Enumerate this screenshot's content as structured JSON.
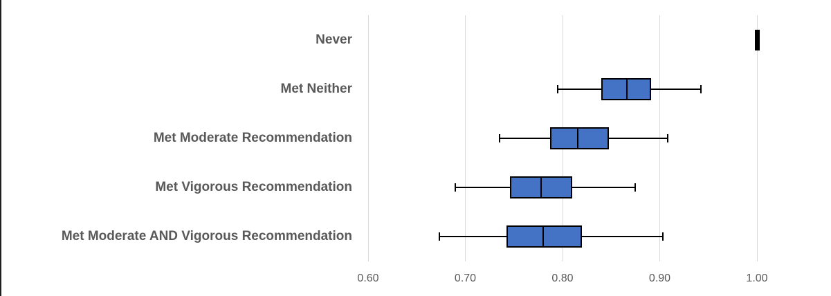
{
  "chart_data": {
    "type": "boxplot",
    "orientation": "horizontal",
    "title": "",
    "categories": [
      "Never",
      "Met Neither",
      "Met Moderate Recommendation",
      "Met Vigorous Recommendation",
      "Met Moderate AND Vigorous Recommendation"
    ],
    "series": [
      {
        "name": "Never",
        "min": 1.0,
        "q1": 1.0,
        "median": 1.0,
        "q3": 1.0,
        "max": 1.0
      },
      {
        "name": "Met Neither",
        "min": 0.795,
        "q1": 0.84,
        "median": 0.866,
        "q3": 0.891,
        "max": 0.942
      },
      {
        "name": "Met Moderate Recommendation",
        "min": 0.735,
        "q1": 0.787,
        "median": 0.816,
        "q3": 0.848,
        "max": 0.908
      },
      {
        "name": "Met Vigorous Recommendation",
        "min": 0.69,
        "q1": 0.746,
        "median": 0.778,
        "q3": 0.81,
        "max": 0.875
      },
      {
        "name": "Met Moderate AND Vigorous Recommendation",
        "min": 0.673,
        "q1": 0.742,
        "median": 0.78,
        "q3": 0.82,
        "max": 0.903
      }
    ],
    "x_axis": {
      "min": 0.6,
      "max": 1.0,
      "tick_labels": [
        "0.60",
        "0.70",
        "0.80",
        "0.90",
        "1.00"
      ],
      "tick_values": [
        0.6,
        0.7,
        0.8,
        0.9,
        1.0
      ]
    },
    "grid": true,
    "legend": null,
    "xlabel": "",
    "ylabel": "",
    "colors": {
      "box_fill": "#4472C4",
      "box_border": "#000000",
      "whisker": "#000000",
      "gridline": "#D9D9D9",
      "text": "#595959",
      "reference_bar": "#000000"
    }
  }
}
